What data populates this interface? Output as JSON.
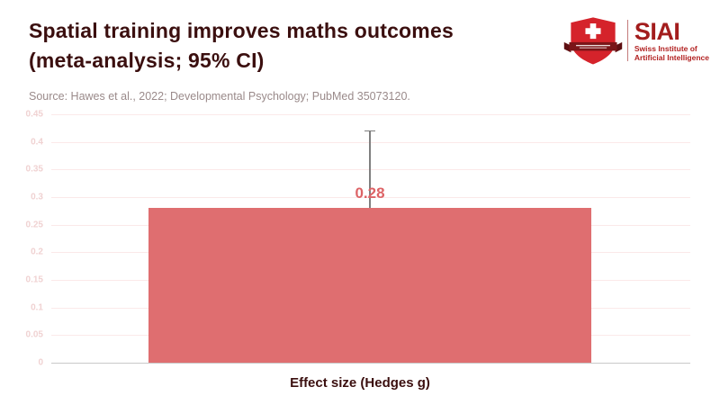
{
  "header": {
    "title_line1": "Spatial training improves maths outcomes",
    "title_line2": "(meta-analysis; 95% CI)",
    "source": "Source: Hawes et al., 2022; Developmental Psychology; PubMed 35073120."
  },
  "logo": {
    "acronym": "SIAI",
    "subtitle_line1": "Swiss Institute of",
    "subtitle_line2": "Artificial Intelligence",
    "shield_color": "#d5232b",
    "banner_color": "#7a1518",
    "text_color": "#a31d1d"
  },
  "chart_data": {
    "type": "bar",
    "title": "Spatial training improves maths outcomes (meta-analysis; 95% CI)",
    "categories": [
      "Effect size (Hedges g)"
    ],
    "values": [
      0.28
    ],
    "value_labels": [
      "0.28"
    ],
    "error_upper": [
      0.42
    ],
    "xlabel": "Effect size (Hedges g)",
    "ylabel": "",
    "ylim": [
      0,
      0.45
    ],
    "yticks": [
      0,
      0.05,
      0.1,
      0.15,
      0.2,
      0.25,
      0.3,
      0.35,
      0.4,
      0.45
    ],
    "ytick_labels": [
      "0",
      "0.05",
      "0.1",
      "0.15",
      "0.2",
      "0.25",
      "0.3",
      "0.35",
      "0.4",
      "0.45"
    ],
    "grid": true,
    "legend": false,
    "bar_color": "#df6e70",
    "label_color": "#dd6366",
    "errorbar_color": "#7f7f7f"
  }
}
